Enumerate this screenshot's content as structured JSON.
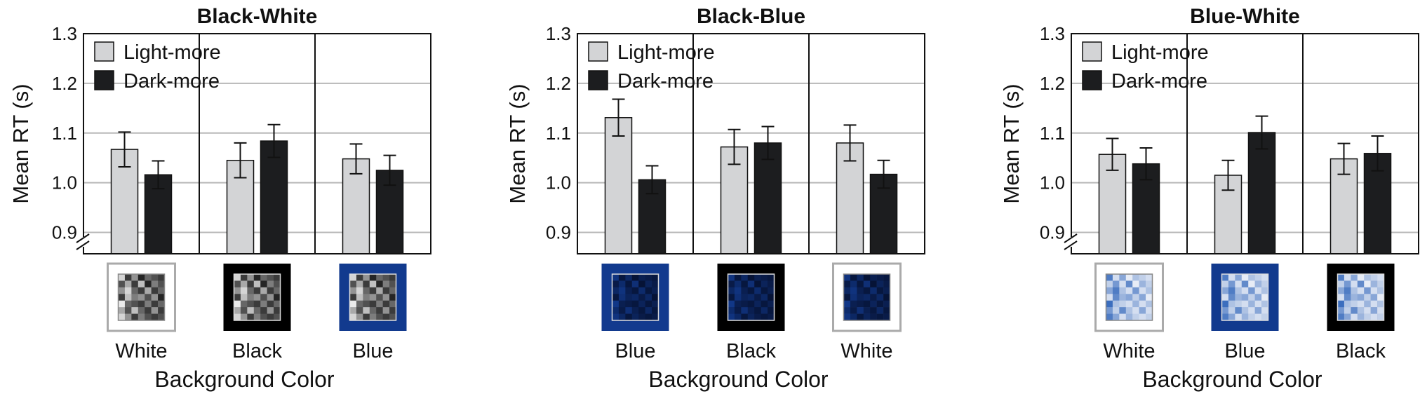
{
  "colors": {
    "light_more": "#d3d4d6",
    "dark_more": "#1c1d1f",
    "grid": "#b8b8b8",
    "blue_bg": "#123a8e",
    "white_border": "#aaaaaa"
  },
  "chart_data": [
    {
      "type": "bar",
      "title": "Black-White",
      "ylabel": "Mean RT (s)",
      "xlabel": "Background Color",
      "ylim": [
        0.9,
        1.3
      ],
      "yticks": [
        "0.9",
        "1.0",
        "1.1",
        "1.2",
        "1.3"
      ],
      "axis_break": true,
      "legend_position": "top-left",
      "categories": [
        "White",
        "Black",
        "Blue"
      ],
      "series": [
        {
          "name": "Light-more",
          "values": [
            1.067,
            1.045,
            1.048
          ],
          "errors": [
            0.035,
            0.035,
            0.03
          ]
        },
        {
          "name": "Dark-more",
          "values": [
            1.016,
            1.084,
            1.025
          ],
          "errors": [
            0.028,
            0.033,
            0.03
          ]
        }
      ],
      "swatches": [
        {
          "background": "white",
          "stimulus": "gray"
        },
        {
          "background": "black",
          "stimulus": "gray"
        },
        {
          "background": "blue",
          "stimulus": "gray"
        }
      ]
    },
    {
      "type": "bar",
      "title": "Black-Blue",
      "ylabel": "Mean RT (s)",
      "xlabel": "Background Color",
      "ylim": [
        0.9,
        1.3
      ],
      "yticks": [
        "0.9",
        "1.0",
        "1.1",
        "1.2",
        "1.3"
      ],
      "axis_break": false,
      "legend_position": "top-left",
      "categories": [
        "Blue",
        "Black",
        "White"
      ],
      "series": [
        {
          "name": "Light-more",
          "values": [
            1.131,
            1.072,
            1.08
          ],
          "errors": [
            0.037,
            0.035,
            0.036
          ]
        },
        {
          "name": "Dark-more",
          "values": [
            1.006,
            1.08,
            1.017
          ],
          "errors": [
            0.028,
            0.033,
            0.028
          ]
        }
      ],
      "swatches": [
        {
          "background": "blue",
          "stimulus": "darkblue"
        },
        {
          "background": "black",
          "stimulus": "darkblue"
        },
        {
          "background": "white",
          "stimulus": "darkblue"
        }
      ]
    },
    {
      "type": "bar",
      "title": "Blue-White",
      "ylabel": "Mean RT (s)",
      "xlabel": "Background Color",
      "ylim": [
        0.9,
        1.3
      ],
      "yticks": [
        "0.9",
        "1.0",
        "1.1",
        "1.2",
        "1.3"
      ],
      "axis_break": true,
      "legend_position": "top-left",
      "categories": [
        "White",
        "Blue",
        "Black"
      ],
      "series": [
        {
          "name": "Light-more",
          "values": [
            1.057,
            1.015,
            1.048
          ],
          "errors": [
            0.032,
            0.03,
            0.031
          ]
        },
        {
          "name": "Dark-more",
          "values": [
            1.038,
            1.101,
            1.059
          ],
          "errors": [
            0.032,
            0.033,
            0.035
          ]
        }
      ],
      "swatches": [
        {
          "background": "white",
          "stimulus": "lightblue"
        },
        {
          "background": "blue",
          "stimulus": "lightblue"
        },
        {
          "background": "black",
          "stimulus": "lightblue"
        }
      ]
    }
  ]
}
